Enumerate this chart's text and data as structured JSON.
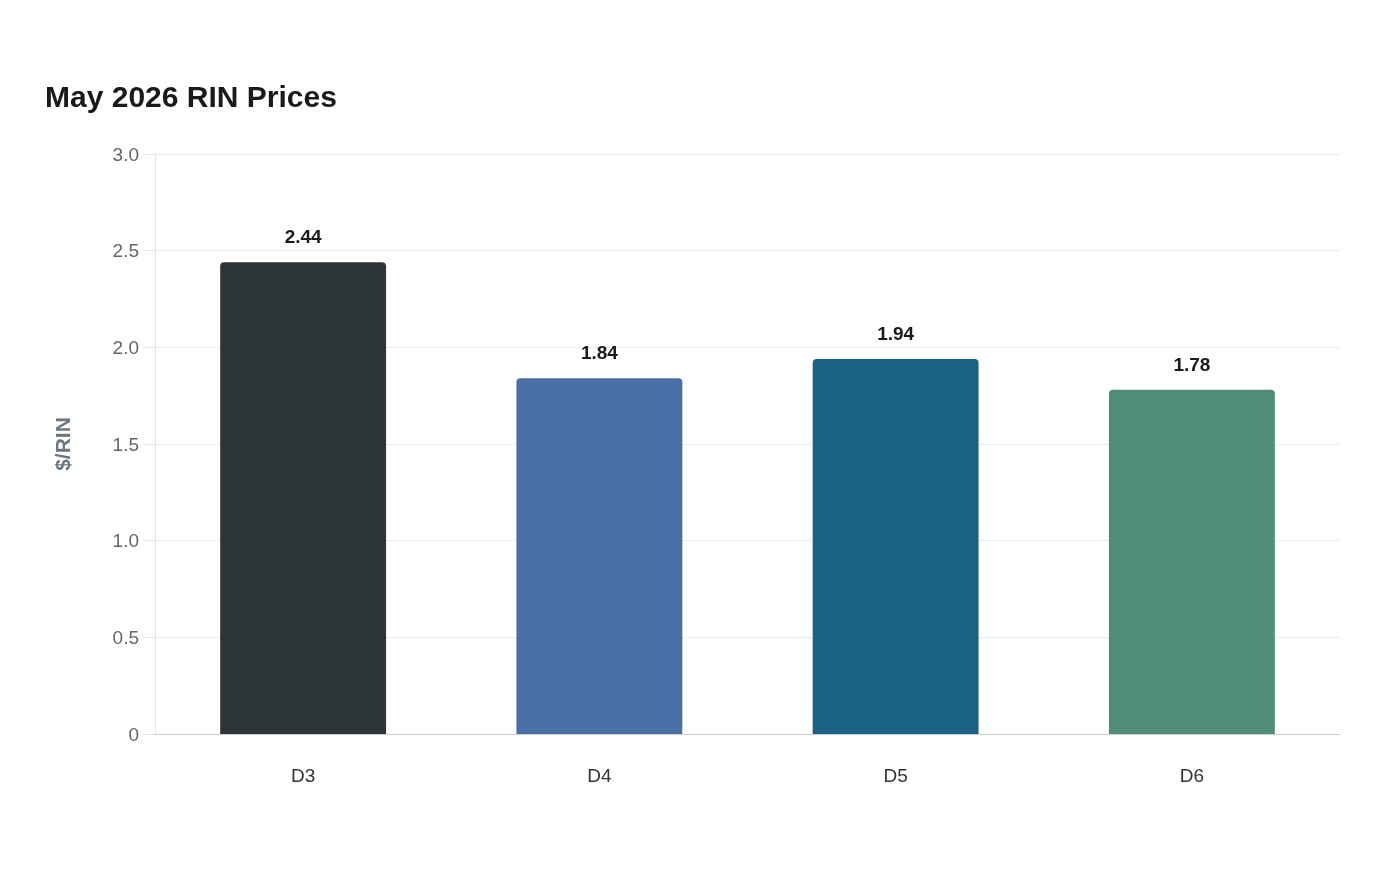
{
  "chart_data": {
    "type": "bar",
    "title": "May 2026 RIN Prices",
    "ylabel": "$/RIN",
    "categories": [
      "D3",
      "D4",
      "D5",
      "D6"
    ],
    "values": [
      2.44,
      1.84,
      1.94,
      1.78
    ],
    "colors": [
      "#2e3538",
      "#4a6fa5",
      "#1a6186",
      "#4f8c7a"
    ],
    "ylim": [
      0,
      3
    ],
    "yticks": [
      0,
      0.5,
      {
        "value": 1,
        "label": "1.0"
      },
      1.5,
      {
        "value": 2,
        "label": "2.0"
      },
      2.5,
      {
        "value": 3,
        "label": "3.0"
      }
    ],
    "grid": "y",
    "data_labels": true
  }
}
